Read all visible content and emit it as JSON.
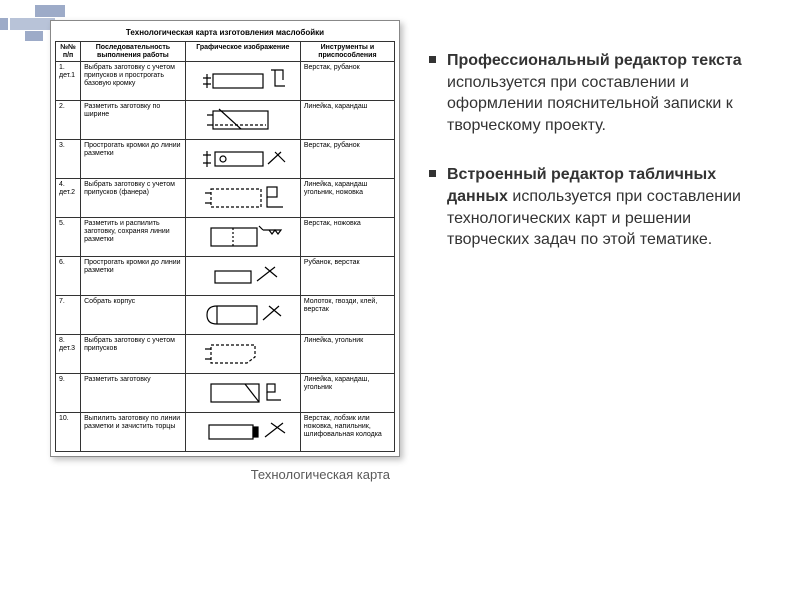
{
  "decor": {
    "c1": "#9dabc8",
    "c2": "#b8c3d8"
  },
  "table": {
    "title": "Технологическая карта изготовления маслобойки",
    "headers": [
      "№№ п/п",
      "Последовательность выполнения работы",
      "Графическое изображение",
      "Инструменты и приспособления"
    ],
    "rows": [
      {
        "n": "1. дет.1",
        "seq": "Выбрать заготовку с учетом припусков и прострогать базовую кромку",
        "tool": "Верстак, рубанок"
      },
      {
        "n": "2.",
        "seq": "Разметить заготовку по ширине",
        "tool": "Линейка, карандаш"
      },
      {
        "n": "3.",
        "seq": "Прострогать кромки до линии разметки",
        "tool": "Верстак, рубанок"
      },
      {
        "n": "4. дет.2",
        "seq": "Выбрать заготовку с учетом припусков (фанера)",
        "tool": "Линейка, карандаш угольник, ножовка"
      },
      {
        "n": "5.",
        "seq": "Разметить и распилить заготовку, сохраняя линии разметки",
        "tool": "Верстак, ножовка"
      },
      {
        "n": "6.",
        "seq": "Прострогать кромки до линии разметки",
        "tool": "Рубанок, верстак"
      },
      {
        "n": "7.",
        "seq": "Собрать корпус",
        "tool": "Молоток, гвозди, клей, верстак"
      },
      {
        "n": "8. дет.3",
        "seq": "Выбрать заготовку с учетом припусков",
        "tool": "Линейка, угольник"
      },
      {
        "n": "9.",
        "seq": "Разметить заготовку",
        "tool": "Линейка, карандаш, угольник"
      },
      {
        "n": "10.",
        "seq": "Выпилить заготовку по линии разметки и зачистить торцы",
        "tool": "Верстак, лобзик или ножовка, напильник, шлифовальная колодка"
      }
    ]
  },
  "caption": "Технологическая карта",
  "bullets": [
    {
      "bold": "Профессиональный редактор текста",
      "rest": " используется при составлении и оформлении пояснительной записки к творческому проекту."
    },
    {
      "bold": "Встроенный редактор табличных данных",
      "rest": " используется при составлении технологических карт и решении творческих задач по этой тематике."
    }
  ],
  "colors": {
    "text": "#333333",
    "caption": "#595959",
    "border": "#333333"
  }
}
